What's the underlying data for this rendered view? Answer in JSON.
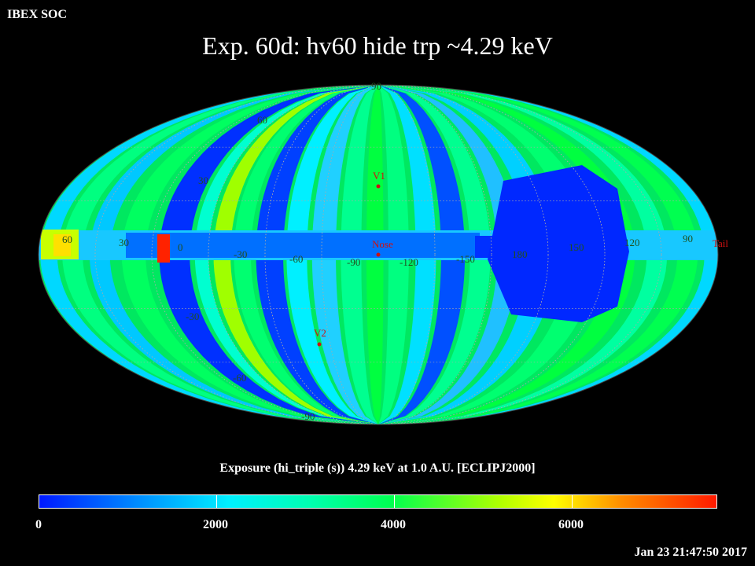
{
  "header": {
    "org": "IBEX SOC",
    "title": "Exp.   60d: hv60 hide trp ~4.29 keV"
  },
  "map": {
    "projection": "Mollweide (ecliptic J2000)",
    "markers": [
      {
        "label": "V1",
        "color": "#d01010"
      },
      {
        "label": "Nose",
        "color": "#d01010"
      },
      {
        "label": "V2",
        "color": "#d01010"
      },
      {
        "label": "Tail",
        "color": "#d01010"
      }
    ],
    "latitude_labels": [
      "90",
      "60",
      "30",
      "-30",
      "-60",
      "-90"
    ],
    "longitude_labels": [
      "60",
      "30",
      "0",
      "-30",
      "-60",
      "-90",
      "-120",
      "-150",
      "180",
      "150",
      "120",
      "90"
    ]
  },
  "colorbar": {
    "title": "Exposure (hi_triple (s))  4.29 keV at 1.0 A.U. [ECLIPJ2000]",
    "ticks": [
      "0",
      "2000",
      "4000",
      "6000"
    ],
    "range": [
      0,
      7600
    ]
  },
  "footer": {
    "timestamp": "Jan 23 21:47:50 2017"
  }
}
